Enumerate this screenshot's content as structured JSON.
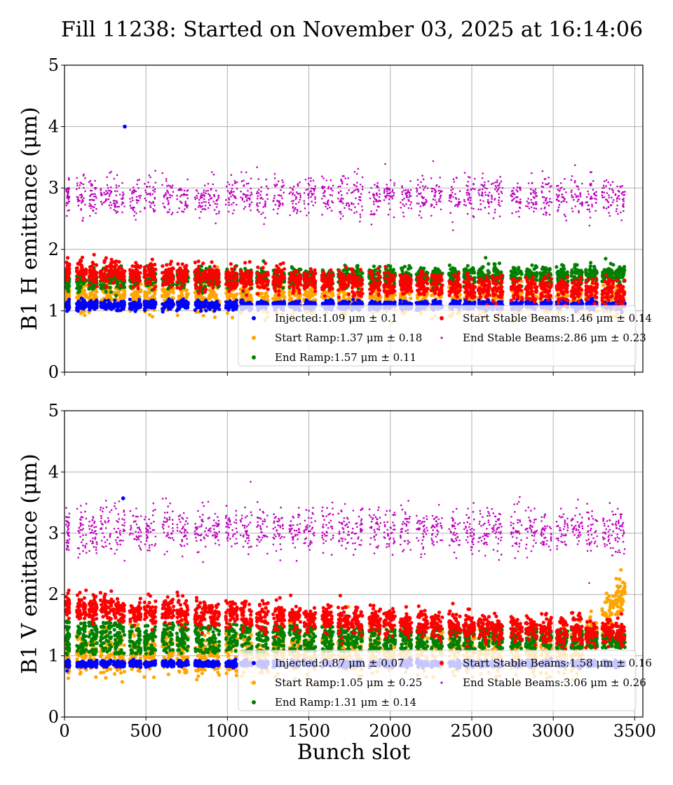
{
  "title": "Fill 11238: Started on November 03, 2025 at 16:14:06",
  "colors": {
    "injected": "#0000ff",
    "start_ramp": "#ffa500",
    "end_ramp": "#008000",
    "start_stable": "#ff0000",
    "end_stable": "#bf00bf"
  },
  "chart_data": [
    {
      "type": "scatter",
      "ylabel": "B1 H emittance (μm)",
      "xlabel": "",
      "xlim": [
        0,
        3550
      ],
      "ylim": [
        0,
        5
      ],
      "xticks": [
        "0",
        "500",
        "1000",
        "1500",
        "2000",
        "2500",
        "3000",
        "3500"
      ],
      "yticks": [
        "0",
        "1",
        "2",
        "3",
        "4",
        "5"
      ],
      "grid": true,
      "legend_position": "lower-right",
      "series": [
        {
          "key": "injected",
          "name": "Injected:1.09 μm ± 0.1",
          "mean": 1.09,
          "std": 0.1,
          "marker": "o"
        },
        {
          "key": "start_ramp",
          "name": "Start Ramp:1.37 μm ± 0.18",
          "mean": 1.37,
          "std": 0.18,
          "marker": "o"
        },
        {
          "key": "end_ramp",
          "name": "End Ramp:1.57 μm ± 0.11",
          "mean": 1.57,
          "std": 0.11,
          "marker": "o"
        },
        {
          "key": "start_stable",
          "name": "Start Stable Beams:1.46 μm ± 0.14",
          "mean": 1.46,
          "std": 0.14,
          "marker": "o"
        },
        {
          "key": "end_stable",
          "name": "End Stable Beams:2.86 μm ± 0.23",
          "mean": 2.86,
          "std": 0.23,
          "marker": "."
        }
      ],
      "outliers": [
        {
          "series": "injected",
          "x": 370,
          "y": 4.0
        }
      ]
    },
    {
      "type": "scatter",
      "ylabel": "B1 V emittance (μm)",
      "xlabel": "Bunch slot",
      "xlim": [
        0,
        3550
      ],
      "ylim": [
        0,
        5
      ],
      "xticks": [
        "0",
        "500",
        "1000",
        "1500",
        "2000",
        "2500",
        "3000",
        "3500"
      ],
      "yticks": [
        "0",
        "1",
        "2",
        "3",
        "4",
        "5"
      ],
      "grid": true,
      "legend_position": "lower-right",
      "series": [
        {
          "key": "injected",
          "name": "Injected:0.87 μm ± 0.07",
          "mean": 0.87,
          "std": 0.07,
          "marker": "o"
        },
        {
          "key": "start_ramp",
          "name": "Start Ramp:1.05 μm ± 0.25",
          "mean": 1.05,
          "std": 0.25,
          "marker": "o"
        },
        {
          "key": "end_ramp",
          "name": "End Ramp:1.31 μm ± 0.14",
          "mean": 1.31,
          "std": 0.14,
          "marker": "o"
        },
        {
          "key": "start_stable",
          "name": "Start Stable Beams:1.58 μm ± 0.16",
          "mean": 1.58,
          "std": 0.16,
          "marker": "o"
        },
        {
          "key": "end_stable",
          "name": "End Stable Beams:3.06 μm ± 0.26",
          "mean": 3.06,
          "std": 0.26,
          "marker": "."
        }
      ],
      "outliers": [
        {
          "series": "injected",
          "x": 360,
          "y": 3.57
        }
      ]
    }
  ],
  "bunch_trains": [
    [
      10,
      30
    ],
    [
      75,
      135
    ],
    [
      150,
      200
    ],
    [
      220,
      290
    ],
    [
      300,
      370
    ],
    [
      400,
      470
    ],
    [
      490,
      560
    ],
    [
      600,
      670
    ],
    [
      690,
      760
    ],
    [
      800,
      870
    ],
    [
      880,
      950
    ],
    [
      990,
      1060
    ],
    [
      1080,
      1150
    ],
    [
      1180,
      1250
    ],
    [
      1280,
      1350
    ],
    [
      1380,
      1450
    ],
    [
      1470,
      1540
    ],
    [
      1580,
      1650
    ],
    [
      1680,
      1750
    ],
    [
      1760,
      1830
    ],
    [
      1870,
      1940
    ],
    [
      1960,
      2030
    ],
    [
      2060,
      2130
    ],
    [
      2160,
      2230
    ],
    [
      2250,
      2320
    ],
    [
      2360,
      2430
    ],
    [
      2450,
      2520
    ],
    [
      2540,
      2610
    ],
    [
      2620,
      2690
    ],
    [
      2740,
      2810
    ],
    [
      2830,
      2900
    ],
    [
      2920,
      2990
    ],
    [
      3020,
      3090
    ],
    [
      3110,
      3180
    ],
    [
      3200,
      3270
    ],
    [
      3300,
      3370
    ],
    [
      3380,
      3440
    ]
  ]
}
